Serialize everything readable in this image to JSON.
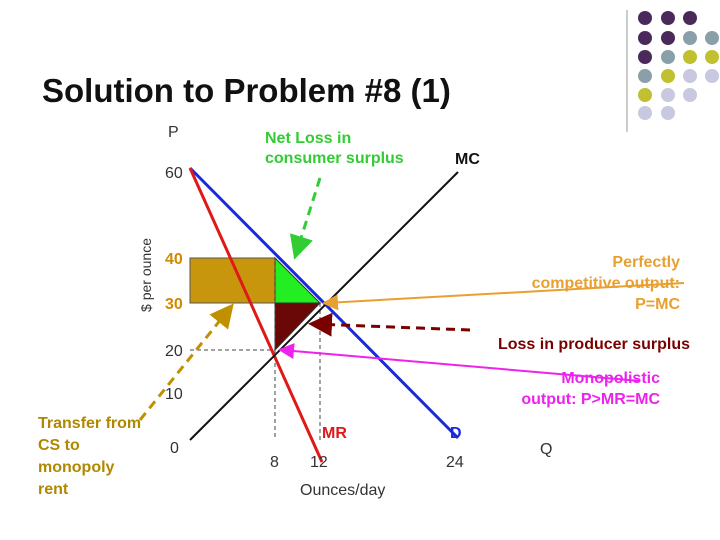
{
  "title": "Solution to Problem #8 (1)",
  "axes": {
    "p_label": "P",
    "q_label": "Q",
    "y_label": "$ per ounce",
    "x_label": "Ounces/day",
    "y_ticks": [
      "60",
      "40",
      "30",
      "20",
      "10",
      "0"
    ],
    "x_ticks": [
      "8",
      "12",
      "24"
    ]
  },
  "curves": {
    "mc": "MC",
    "mr": "MR",
    "d": "D"
  },
  "annotations": {
    "net_loss": [
      "Net Loss in",
      "consumer surplus"
    ],
    "perfect": [
      "Perfectly",
      "competitive output:",
      "P=MC"
    ],
    "producer": "Loss in producer surplus",
    "monopolistic": [
      "Monopolistic",
      "output: P>MR=MC"
    ],
    "transfer": [
      "Transfer from",
      "CS to",
      "monopoly",
      "rent"
    ]
  }
}
